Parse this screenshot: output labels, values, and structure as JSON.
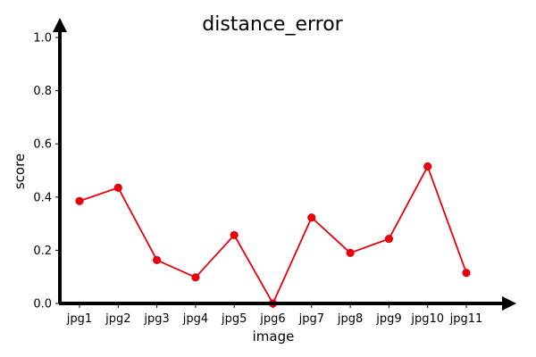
{
  "chart_data": {
    "type": "line",
    "title": "distance_error",
    "xlabel": "image",
    "ylabel": "score",
    "categories": [
      "jpg1",
      "jpg2",
      "jpg3",
      "jpg4",
      "jpg5",
      "jpg6",
      "jpg7",
      "jpg8",
      "jpg9",
      "jpg10",
      "jpg11"
    ],
    "series": [
      {
        "values": [
          0.385,
          0.435,
          0.163,
          0.098,
          0.257,
          0.0,
          0.323,
          0.19,
          0.243,
          0.515,
          0.115
        ],
        "color": "#e8000b"
      }
    ],
    "ylim": [
      0.0,
      1.0
    ],
    "yticks": [
      {
        "value": 0.0,
        "label": "0.0"
      },
      {
        "value": 0.2,
        "label": "0.2"
      },
      {
        "value": 0.4,
        "label": "0.4"
      },
      {
        "value": 0.6,
        "label": "0.6"
      },
      {
        "value": 0.8,
        "label": "0.8"
      },
      {
        "value": 1.0,
        "label": "1.0"
      }
    ],
    "grid": false,
    "legend": "none"
  }
}
